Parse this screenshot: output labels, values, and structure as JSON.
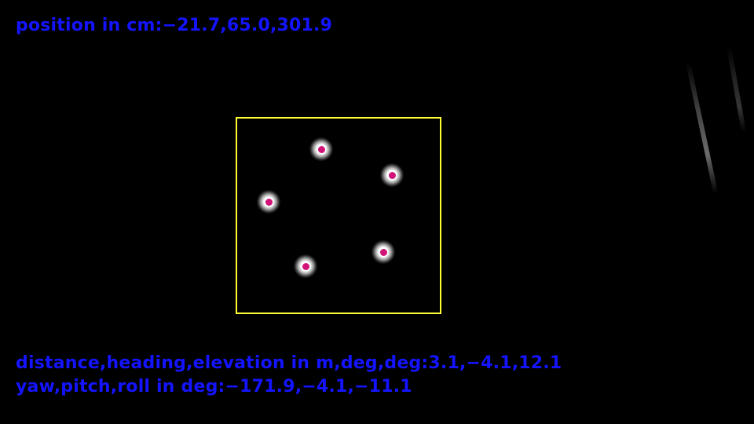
{
  "overlay": {
    "position_line": "position in cm:−21.7,65.0,301.9",
    "distance_line": "distance,heading,elevation in m,deg,deg:3.1,−4.1,12.1",
    "orientation_line": "yaw,pitch,roll in deg:−171.9,−4.1,−11.1"
  },
  "colors": {
    "text": "#1414ff",
    "roi_box": "#ffff33",
    "marker_dot": "#d21478",
    "background": "#000000"
  },
  "detection": {
    "marker_count": 5
  }
}
